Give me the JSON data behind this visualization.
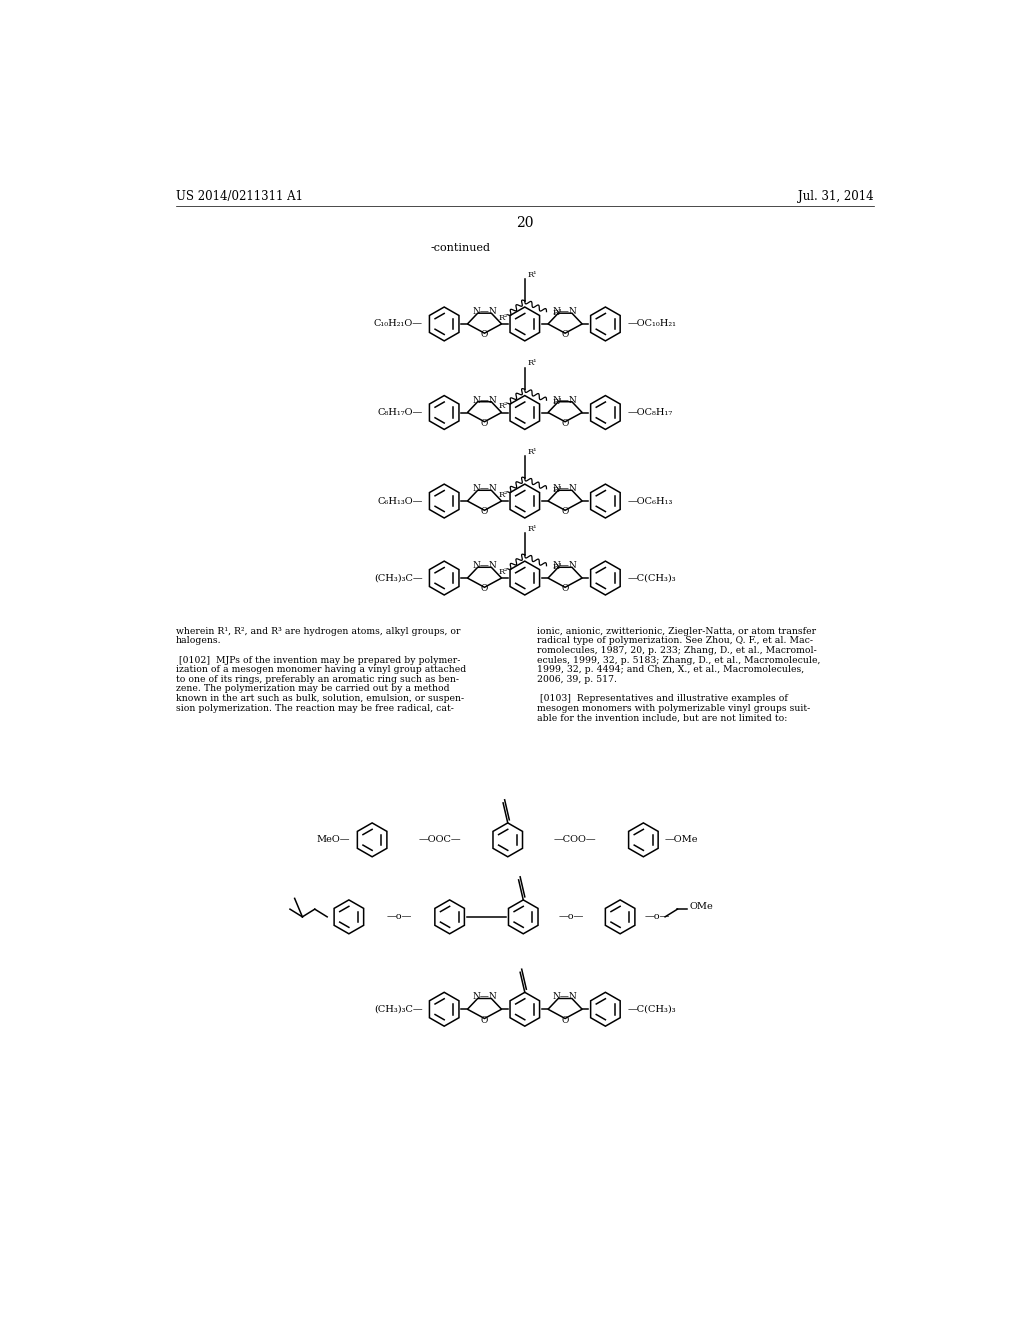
{
  "background_color": "#ffffff",
  "page_header_left": "US 2014/0211311 A1",
  "page_header_right": "Jul. 31, 2014",
  "page_number": "20",
  "continued_label": "-continued",
  "figsize": [
    10.24,
    13.2
  ],
  "dpi": 100
}
